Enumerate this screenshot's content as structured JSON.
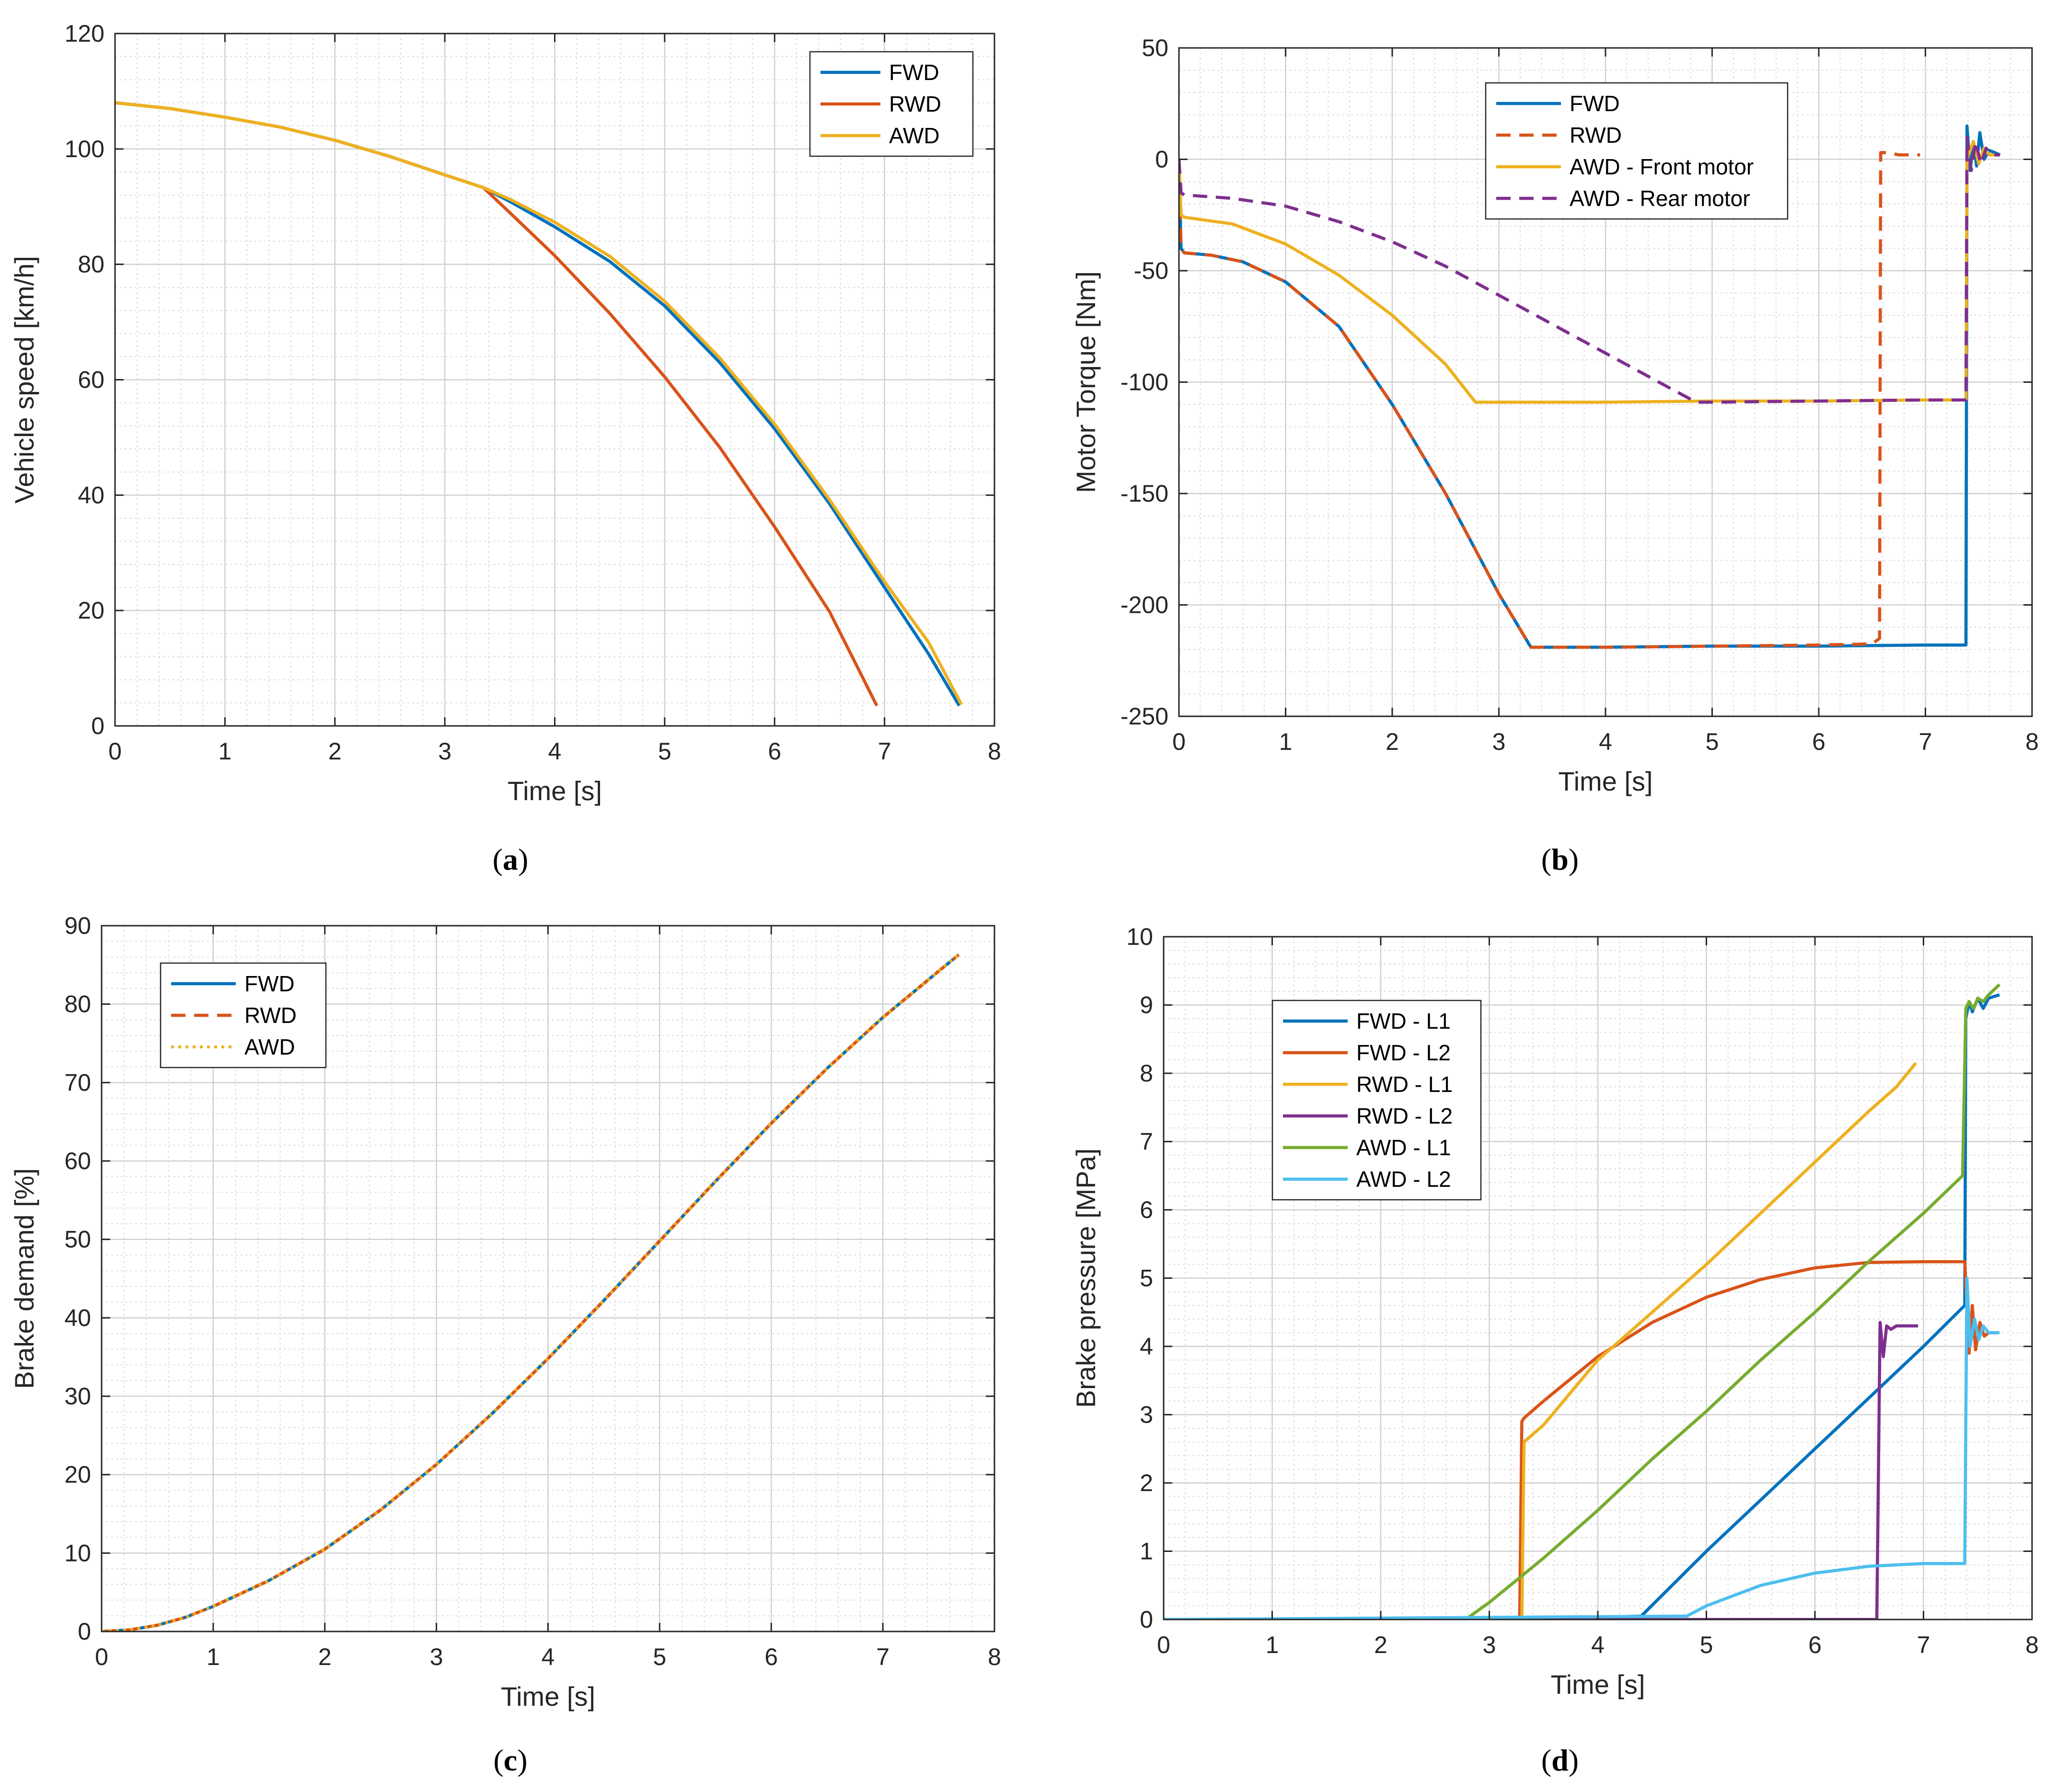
{
  "chart_data": [
    {
      "id": "a",
      "type": "line",
      "caption": "a",
      "xlabel": "Time [s]",
      "ylabel": "Vehicle speed [km/h]",
      "xlim": [
        0,
        8
      ],
      "ylim": [
        0,
        120
      ],
      "xticks": [
        0,
        1,
        2,
        3,
        4,
        5,
        6,
        7,
        8
      ],
      "yticks": [
        0,
        20,
        40,
        60,
        80,
        100,
        120
      ],
      "grid": true,
      "minor_grid": true,
      "legend": "top-right",
      "series": [
        {
          "name": "FWD",
          "color": "#0072BD",
          "dash": "solid",
          "x": [
            0,
            0.5,
            1,
            1.5,
            2,
            2.5,
            3,
            3.35,
            3.6,
            4,
            4.5,
            5,
            5.5,
            6,
            6.5,
            7,
            7.4,
            7.68
          ],
          "y": [
            108,
            107,
            105.5,
            103.8,
            101.5,
            98.7,
            95.5,
            93.3,
            90.8,
            86.5,
            80.5,
            72.8,
            63,
            51.5,
            38.5,
            24,
            12.5,
            3.5
          ]
        },
        {
          "name": "RWD",
          "color": "#D95319",
          "dash": "solid",
          "x": [
            0,
            0.5,
            1,
            1.5,
            2,
            2.5,
            3,
            3.35,
            3.6,
            4,
            4.5,
            5,
            5.5,
            6,
            6.5,
            6.93
          ],
          "y": [
            108,
            107,
            105.5,
            103.8,
            101.5,
            98.7,
            95.5,
            93.3,
            88.8,
            81.5,
            71.5,
            60.5,
            48.3,
            34.5,
            19.8,
            3.5
          ]
        },
        {
          "name": "AWD",
          "color": "#EDB120",
          "dash": "solid",
          "x": [
            0,
            0.5,
            1,
            1.5,
            2,
            2.5,
            3,
            3.35,
            3.6,
            4,
            4.5,
            5,
            5.5,
            6,
            6.5,
            7,
            7.4,
            7.7
          ],
          "y": [
            108,
            107,
            105.5,
            103.8,
            101.5,
            98.7,
            95.5,
            93.3,
            91.2,
            87.3,
            81.4,
            73.6,
            63.8,
            52.3,
            39.2,
            25,
            14.5,
            3.7
          ]
        }
      ]
    },
    {
      "id": "b",
      "type": "line",
      "caption": "b",
      "xlabel": "Time [s]",
      "ylabel": "Motor Torque [Nm]",
      "xlim": [
        0,
        8
      ],
      "ylim": [
        -250,
        50
      ],
      "xticks": [
        0,
        1,
        2,
        3,
        4,
        5,
        6,
        7,
        8
      ],
      "yticks": [
        -250,
        -200,
        -150,
        -100,
        -50,
        0,
        50
      ],
      "grid": true,
      "minor_grid": true,
      "legend": "top-center",
      "series": [
        {
          "name": "FWD",
          "color": "#0072BD",
          "dash": "solid",
          "x": [
            0,
            0.02,
            0.05,
            0.3,
            0.6,
            1,
            1.5,
            2,
            2.5,
            3,
            3.3,
            4,
            5,
            6,
            7,
            7.38,
            7.39,
            7.42,
            7.45,
            7.48,
            7.51,
            7.55,
            7.6,
            7.7
          ],
          "y": [
            0,
            -40,
            -42,
            -43,
            -46,
            -55,
            -75,
            -110,
            -150,
            -195,
            -219,
            -219,
            -218.5,
            -218.5,
            -218,
            -218,
            15,
            -5,
            8,
            -3,
            12,
            0,
            4,
            2
          ]
        },
        {
          "name": "RWD",
          "color": "#D95319",
          "dash": "dashed",
          "x": [
            0,
            0.02,
            0.05,
            0.3,
            0.6,
            1,
            1.5,
            2,
            2.5,
            3,
            3.3,
            4,
            5,
            6,
            6.5,
            6.57,
            6.58,
            6.65,
            6.75,
            6.95
          ],
          "y": [
            0,
            -40,
            -42,
            -43,
            -46,
            -55,
            -75,
            -110,
            -150,
            -195,
            -219,
            -219,
            -218.5,
            -218,
            -217.5,
            -215,
            3,
            3,
            2,
            2
          ]
        },
        {
          "name": "AWD - Front motor",
          "color": "#EDB120",
          "dash": "solid",
          "x": [
            0,
            0.02,
            0.05,
            0.5,
            1,
            1.5,
            2,
            2.5,
            2.78,
            3,
            4,
            5,
            6,
            7,
            7.38,
            7.39,
            7.45,
            7.5,
            7.55,
            7.6,
            7.7
          ],
          "y": [
            0,
            -25,
            -26,
            -29,
            -38,
            -52,
            -70,
            -92,
            -109,
            -109,
            -109,
            -108.5,
            -108.5,
            -108,
            -108,
            0,
            8,
            -2,
            5,
            2,
            2
          ]
        },
        {
          "name": "AWD - Rear motor",
          "color": "#7E2F8E",
          "dash": "dashed",
          "x": [
            0,
            0.02,
            0.05,
            0.5,
            1,
            1.5,
            2,
            2.5,
            3,
            3.5,
            4,
            4.5,
            4.85,
            5,
            6,
            7,
            7.38,
            7.39,
            7.43,
            7.47,
            7.52,
            7.57,
            7.62,
            7.7
          ],
          "y": [
            0,
            -15,
            -16,
            -17.5,
            -21,
            -28,
            -37,
            -48,
            -61,
            -74,
            -87,
            -100,
            -109,
            -109,
            -108.5,
            -108,
            -108,
            10,
            -5,
            8,
            -2,
            5,
            2,
            2
          ]
        }
      ]
    },
    {
      "id": "c",
      "type": "line",
      "caption": "c",
      "xlabel": "Time [s]",
      "ylabel": "Brake demand [%]",
      "xlim": [
        0,
        8
      ],
      "ylim": [
        0,
        90
      ],
      "xticks": [
        0,
        1,
        2,
        3,
        4,
        5,
        6,
        7,
        8
      ],
      "yticks": [
        0,
        10,
        20,
        30,
        40,
        50,
        60,
        70,
        80,
        90
      ],
      "grid": true,
      "minor_grid": true,
      "legend": "top-left",
      "series": [
        {
          "name": "FWD",
          "color": "#0072BD",
          "dash": "solid",
          "x": [
            0,
            0.25,
            0.5,
            0.75,
            1,
            1.5,
            2,
            2.5,
            3,
            3.5,
            4,
            4.5,
            5,
            5.5,
            6,
            6.5,
            7,
            7.5,
            7.68
          ],
          "y": [
            0,
            0.2,
            0.8,
            1.8,
            3.2,
            6.5,
            10.5,
            15.5,
            21.3,
            27.8,
            34.8,
            42.2,
            49.8,
            57.4,
            64.8,
            71.8,
            78.3,
            84.2,
            86.3
          ]
        },
        {
          "name": "RWD",
          "color": "#D95319",
          "dash": "dashed",
          "x": [
            0,
            0.25,
            0.5,
            0.75,
            1,
            1.5,
            2,
            2.5,
            3,
            3.5,
            4,
            4.5,
            5,
            5.5,
            6,
            6.5,
            7,
            7.5,
            7.68
          ],
          "y": [
            0,
            0.2,
            0.8,
            1.8,
            3.2,
            6.5,
            10.5,
            15.5,
            21.3,
            27.8,
            34.8,
            42.2,
            49.8,
            57.4,
            64.8,
            71.8,
            78.3,
            84.2,
            86.3
          ]
        },
        {
          "name": "AWD",
          "color": "#EDB120",
          "dash": "dotted",
          "x": [
            0,
            0.25,
            0.5,
            0.75,
            1,
            1.5,
            2,
            2.5,
            3,
            3.5,
            4,
            4.5,
            5,
            5.5,
            6,
            6.5,
            7,
            7.5,
            7.68
          ],
          "y": [
            0,
            0.2,
            0.8,
            1.8,
            3.2,
            6.5,
            10.5,
            15.5,
            21.3,
            27.8,
            34.8,
            42.2,
            49.8,
            57.4,
            64.8,
            71.8,
            78.3,
            84.2,
            86.3
          ]
        }
      ]
    },
    {
      "id": "d",
      "type": "line",
      "caption": "d",
      "xlabel": "Time [s]",
      "ylabel": "Brake pressure [MPa]",
      "xlim": [
        0,
        8
      ],
      "ylim": [
        0,
        10
      ],
      "xticks": [
        0,
        1,
        2,
        3,
        4,
        5,
        6,
        7,
        8
      ],
      "yticks": [
        0,
        1,
        2,
        3,
        4,
        5,
        6,
        7,
        8,
        9,
        10
      ],
      "grid": true,
      "minor_grid": true,
      "legend": "left",
      "series": [
        {
          "name": "FWD - L1",
          "color": "#0072BD",
          "dash": "solid",
          "x": [
            0,
            3.3,
            4.4,
            5,
            5.5,
            6,
            6.5,
            7,
            7.38,
            7.39,
            7.42,
            7.45,
            7.5,
            7.55,
            7.6,
            7.7
          ],
          "y": [
            0,
            0,
            0.05,
            1.0,
            1.75,
            2.5,
            3.25,
            4.0,
            4.6,
            8.8,
            9.05,
            8.9,
            9.1,
            8.95,
            9.1,
            9.15
          ]
        },
        {
          "name": "FWD - L2",
          "color": "#D95319",
          "dash": "solid",
          "x": [
            0,
            3.28,
            3.3,
            3.32,
            3.5,
            4,
            4.5,
            5,
            5.5,
            6,
            6.5,
            7,
            7.38,
            7.42,
            7.45,
            7.48,
            7.52,
            7.56,
            7.6,
            7.7
          ],
          "y": [
            0,
            0,
            2.9,
            2.95,
            3.2,
            3.85,
            4.35,
            4.72,
            4.98,
            5.15,
            5.23,
            5.24,
            5.24,
            3.9,
            4.6,
            3.95,
            4.35,
            4.15,
            4.2,
            4.2
          ]
        },
        {
          "name": "RWD - L1",
          "color": "#EDB120",
          "dash": "solid",
          "x": [
            0,
            3.3,
            3.32,
            3.5,
            4,
            4.5,
            5,
            5.5,
            6,
            6.5,
            6.75,
            6.93
          ],
          "y": [
            0,
            0,
            2.6,
            2.85,
            3.8,
            4.5,
            5.2,
            5.95,
            6.7,
            7.45,
            7.8,
            8.15
          ]
        },
        {
          "name": "RWD - L2",
          "color": "#7E2F8E",
          "dash": "solid",
          "x": [
            0,
            6.57,
            6.6,
            6.63,
            6.66,
            6.7,
            6.75,
            6.85,
            6.95
          ],
          "y": [
            0,
            0,
            4.35,
            3.85,
            4.3,
            4.25,
            4.3,
            4.3,
            4.3
          ]
        },
        {
          "name": "AWD - L1",
          "color": "#77AC30",
          "dash": "solid",
          "x": [
            0,
            2.78,
            3,
            3.5,
            4,
            4.5,
            5,
            5.5,
            6,
            6.5,
            7,
            7.36,
            7.39,
            7.42,
            7.46,
            7.5,
            7.55,
            7.6,
            7.7
          ],
          "y": [
            0,
            0,
            0.25,
            0.9,
            1.6,
            2.35,
            3.05,
            3.8,
            4.5,
            5.25,
            5.95,
            6.5,
            8.95,
            9.05,
            8.95,
            9.1,
            9.05,
            9.15,
            9.3
          ]
        },
        {
          "name": "AWD - L2",
          "color": "#4DBEEE",
          "dash": "solid",
          "x": [
            0,
            4.82,
            5,
            5.5,
            6,
            6.5,
            7,
            7.38,
            7.4,
            7.43,
            7.47,
            7.51,
            7.55,
            7.6,
            7.7
          ],
          "y": [
            0,
            0.05,
            0.2,
            0.5,
            0.68,
            0.78,
            0.82,
            0.82,
            5.0,
            4.0,
            4.4,
            4.1,
            4.3,
            4.2,
            4.2
          ]
        }
      ]
    }
  ]
}
